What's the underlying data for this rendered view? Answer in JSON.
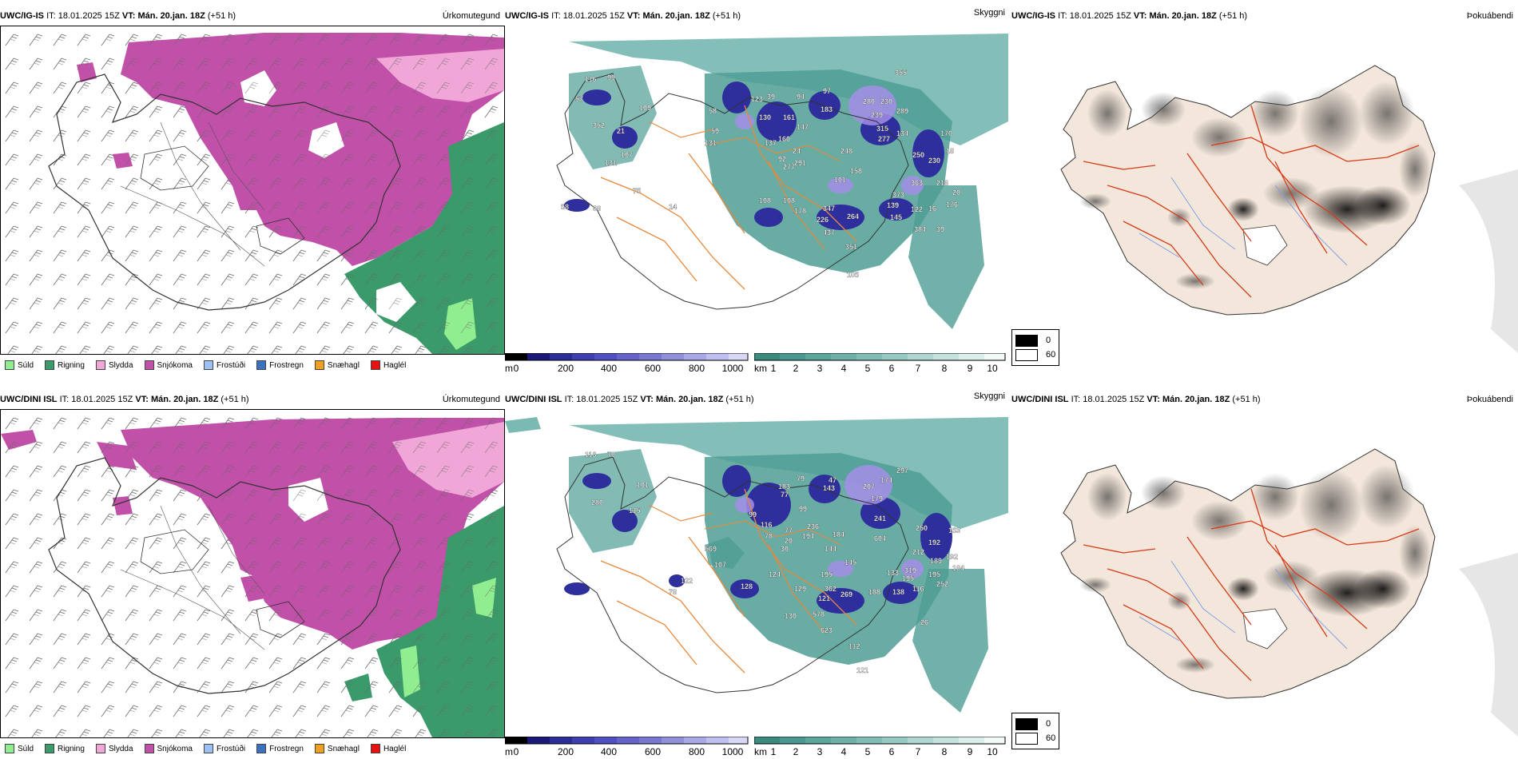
{
  "rows": [
    {
      "model": "UWC/IG-IS",
      "it_label": "IT:",
      "it_value": "18.01.2025 15Z",
      "vt_label": "VT:",
      "vt_value": "Mán. 20.jan. 18Z",
      "lead": "(+51 h)",
      "titles": {
        "precip": "Úrkomutegund",
        "cloud": "Skyggni",
        "fog": "Þokuábendi"
      },
      "cloud_labels": [
        "116",
        "99",
        "109",
        "352",
        "21",
        "107",
        "131",
        "75",
        "58",
        "14",
        "108",
        "58",
        "123",
        "39",
        "130",
        "94",
        "97",
        "183",
        "280",
        "230",
        "239",
        "289",
        "355",
        "315",
        "134",
        "277",
        "170",
        "137",
        "160",
        "147",
        "101",
        "248",
        "250",
        "230",
        "24",
        "18",
        "158",
        "363",
        "373",
        "216",
        "20",
        "139",
        "145",
        "176",
        "347",
        "178",
        "226",
        "264",
        "122",
        "16",
        "384",
        "437",
        "39",
        "351",
        "105",
        "92",
        "277",
        "291",
        "108",
        "59",
        "131",
        "68",
        "57",
        "161"
      ]
    },
    {
      "model": "UWC/DINI ISL",
      "it_label": "IT:",
      "it_value": "18.01.2025 15Z",
      "vt_label": "VT:",
      "vt_value": "Mán. 20.jan. 18Z",
      "lead": "(+51 h)",
      "titles": {
        "precip": "Úrkomutegund",
        "cloud": "Skyggni",
        "fog": "Þokuábendi"
      },
      "cloud_labels": [
        "113",
        "70",
        "101",
        "280",
        "183",
        "77",
        "79",
        "143",
        "47",
        "297",
        "207",
        "174",
        "179",
        "241",
        "604",
        "250",
        "192",
        "153",
        "212",
        "189",
        "192",
        "195",
        "184",
        "252",
        "319",
        "195",
        "116",
        "133",
        "138",
        "188",
        "269",
        "362",
        "121",
        "129",
        "124",
        "128",
        "195",
        "144",
        "145",
        "184",
        "236",
        "194",
        "99",
        "77",
        "116",
        "78",
        "20",
        "30",
        "99",
        "115",
        "569",
        "107",
        "122",
        "78",
        "130",
        "578",
        "623",
        "112",
        "121",
        "26"
      ]
    }
  ],
  "precip_legend": [
    {
      "label": "Súld",
      "color": "#90ee90"
    },
    {
      "label": "Rigning",
      "color": "#3a9a6a"
    },
    {
      "label": "Slydda",
      "color": "#f0a6d6"
    },
    {
      "label": "Snjókoma",
      "color": "#c050a8"
    },
    {
      "label": "Frostúði",
      "color": "#9cc0f0"
    },
    {
      "label": "Frostregn",
      "color": "#3b72c0"
    },
    {
      "label": "Snæhagl",
      "color": "#f0a020"
    },
    {
      "label": "Haglél",
      "color": "#e81010"
    }
  ],
  "colorbar_m": {
    "unit": "m",
    "ticks": [
      "0",
      "200",
      "400",
      "600",
      "800",
      "1000"
    ]
  },
  "colorbar_km": {
    "unit": "km",
    "ticks": [
      "1",
      "2",
      "3",
      "4",
      "5",
      "6",
      "7",
      "8",
      "9",
      "10"
    ]
  },
  "fog_legend": {
    "values": [
      "0",
      "60"
    ]
  },
  "colors": {
    "snow": "#c050a8",
    "rain": "#3a9a6a",
    "sleet": "#f0a6d6",
    "drizzle": "#90ee90",
    "cloud_teal": "#4d9e94",
    "cloud_blue": "#2e2e9c",
    "roads_orange": "#e8883a",
    "land_beige": "#f3e6da",
    "roads_red": "#d83a1a"
  }
}
